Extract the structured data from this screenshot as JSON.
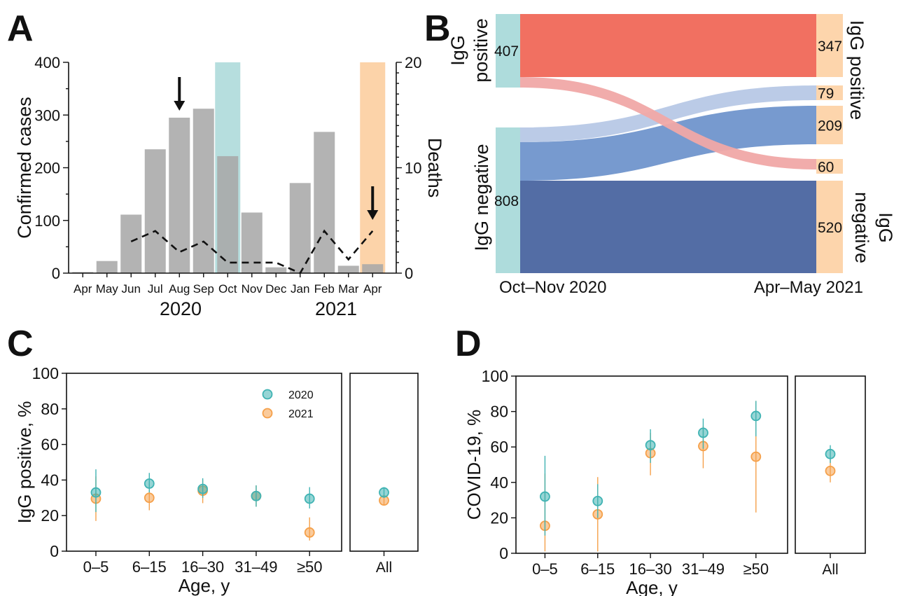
{
  "panel_labels": [
    "A",
    "B",
    "C",
    "D"
  ],
  "colors": {
    "bar_gray": "#a9a9a9",
    "teal_shade": "#a9d8d8",
    "orange_shade": "#fbcb9a",
    "red": "#f06858",
    "red_light": "#f0a8a6",
    "blue_light": "#b7c8e6",
    "blue_mid": "#7095cc",
    "blue_dark": "#4a65a0",
    "teal_node": "#aedcdc",
    "orange_node": "#fdd5ac",
    "teal_marker": "#3fb3b3",
    "orange_marker": "#f5a04a"
  },
  "chart_data": [
    {
      "panel": "A",
      "type": "bar",
      "categories": [
        "Apr",
        "May",
        "Jun",
        "Jul",
        "Aug",
        "Sep",
        "Oct",
        "Nov",
        "Dec",
        "Jan",
        "Feb",
        "Mar",
        "Apr"
      ],
      "year_labels": [
        "2020",
        "2021"
      ],
      "ylabel": "Confirmed cases",
      "y2label": "Deaths",
      "ylim": [
        0,
        400
      ],
      "y2lim": [
        0,
        20
      ],
      "yticks": [
        "0",
        "100",
        "200",
        "300",
        "400"
      ],
      "y2ticks": [
        "0",
        "10",
        "20"
      ],
      "series": [
        {
          "name": "",
          "type": "bar",
          "values": [
            2,
            23,
            111,
            235,
            295,
            312,
            222,
            115,
            11,
            171,
            268,
            14,
            17
          ]
        },
        {
          "name": "",
          "type": "line",
          "style": "dashed",
          "axis": "right",
          "values": [
            null,
            null,
            3,
            4,
            2,
            3,
            1,
            1,
            1,
            0,
            4,
            1.3,
            4
          ]
        }
      ],
      "shaded_months": [
        {
          "index": 6,
          "color": "teal"
        },
        {
          "index": 12,
          "color": "orange"
        }
      ],
      "arrows_at": [
        4,
        12
      ]
    },
    {
      "panel": "B",
      "type": "sankey",
      "left_time": "Oct–Nov 2020",
      "right_time": "Apr–May 2021",
      "left_nodes": [
        {
          "label": "IgG positive",
          "value": "407"
        },
        {
          "label": "IgG negative",
          "value": "808"
        }
      ],
      "right_nodes": [
        {
          "label": "IgG positive",
          "value": "347",
          "group": "positive"
        },
        {
          "label": "",
          "value": "79",
          "group": "positive"
        },
        {
          "label": "",
          "value": "209",
          "group": "negative"
        },
        {
          "label": "",
          "value": "60",
          "group": "negative"
        },
        {
          "label": "IgG negative",
          "value": "520",
          "group": "negative"
        }
      ],
      "flows": [
        {
          "from": "IgG positive",
          "to": "347",
          "value": 347
        },
        {
          "from": "IgG positive",
          "to": "60",
          "value": 60
        },
        {
          "from": "IgG negative",
          "to": "79",
          "value": 79
        },
        {
          "from": "IgG negative",
          "to": "209",
          "value": 209
        },
        {
          "from": "IgG negative",
          "to": "520",
          "value": 520
        }
      ]
    },
    {
      "panel": "C",
      "type": "scatter",
      "xlabel": "Age, y",
      "ylabel": "IgG positive, %",
      "ylim": [
        0,
        100
      ],
      "yticks": [
        "0",
        "20",
        "40",
        "60",
        "80",
        "100"
      ],
      "categories": [
        "0–5",
        "6–15",
        "16–30",
        "31–49",
        "≥50"
      ],
      "overall_label": "All",
      "legend": [
        "2020",
        "2021"
      ],
      "series": [
        {
          "name": "2020",
          "values": [
            33,
            38,
            35,
            31,
            29.5
          ],
          "lo": [
            22,
            33,
            30,
            25,
            24
          ],
          "hi": [
            46,
            44,
            41,
            37,
            36
          ],
          "overall": 33,
          "overall_lo": 30,
          "overall_hi": 36
        },
        {
          "name": "2021",
          "values": [
            29.5,
            30,
            34,
            31,
            10.5
          ],
          "lo": [
            17,
            23,
            27,
            25,
            6
          ],
          "hi": [
            42,
            38,
            40,
            37,
            19
          ],
          "overall": 28.5,
          "overall_lo": 26,
          "overall_hi": 31
        }
      ]
    },
    {
      "panel": "D",
      "type": "scatter",
      "xlabel": "Age, y",
      "ylabel": "COVID-19, %",
      "ylim": [
        0,
        100
      ],
      "yticks": [
        "0",
        "20",
        "40",
        "60",
        "80",
        "100"
      ],
      "categories": [
        "0–5",
        "6–15",
        "16–30",
        "31–49",
        "≥50"
      ],
      "overall_label": "All",
      "series": [
        {
          "name": "2020",
          "values": [
            32,
            29.5,
            61,
            68,
            77.5
          ],
          "lo": [
            10,
            20,
            51,
            59,
            66
          ],
          "hi": [
            55,
            39,
            70,
            76,
            86
          ],
          "overall": 56,
          "overall_lo": 51,
          "overall_hi": 61
        },
        {
          "name": "2021",
          "values": [
            15.5,
            22,
            56.5,
            60.5,
            54.5
          ],
          "lo": [
            1,
            1,
            44,
            48,
            23
          ],
          "hi": [
            45,
            43,
            68,
            72,
            86
          ],
          "overall": 46.5,
          "overall_lo": 40,
          "overall_hi": 53
        }
      ]
    }
  ]
}
